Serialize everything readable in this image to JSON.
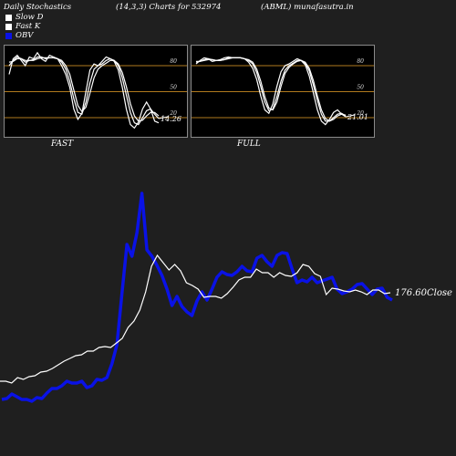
{
  "header": {
    "title": "Daily Stochastics",
    "params": "(14,3,3) Charts for 532974",
    "symbol": "(ABML) munafasutra.in"
  },
  "legend": [
    {
      "label": "Slow  D",
      "color": "#ffffff"
    },
    {
      "label": "Fast K",
      "color": "#ffffff"
    },
    {
      "label": "OBV",
      "color": "#0a12e6"
    }
  ],
  "colors": {
    "background": "#1f1f1f",
    "panel": "#000000",
    "level_line": "#b07a1e",
    "obv": "#0a12e6",
    "price": "#ffffff"
  },
  "chart_data": [
    {
      "type": "line",
      "name": "fast-stochastic",
      "title": "FAST",
      "ylim": [
        0,
        100
      ],
      "levels": [
        80,
        50,
        20
      ],
      "level_labels": [
        "80",
        "50",
        "20"
      ],
      "end_label": "14.26",
      "series": [
        {
          "values": [
            70,
            88,
            92,
            86,
            80,
            90,
            88,
            95,
            88,
            85,
            92,
            90,
            88,
            80,
            70,
            55,
            30,
            18,
            25,
            50,
            75,
            82,
            80,
            85,
            90,
            88,
            85,
            75,
            55,
            30,
            12,
            8,
            15,
            30,
            38,
            30,
            16,
            14
          ]
        },
        {
          "values": [
            80,
            86,
            90,
            88,
            84,
            86,
            87,
            90,
            90,
            88,
            89,
            89,
            88,
            84,
            76,
            62,
            42,
            26,
            24,
            38,
            60,
            76,
            80,
            82,
            86,
            88,
            86,
            80,
            66,
            46,
            26,
            14,
            12,
            20,
            28,
            30,
            24,
            19
          ]
        },
        {
          "values": [
            84,
            85,
            88,
            88,
            86,
            86,
            86,
            88,
            89,
            89,
            89,
            89,
            88,
            86,
            80,
            70,
            52,
            34,
            27,
            32,
            48,
            66,
            76,
            80,
            83,
            86,
            86,
            82,
            72,
            56,
            36,
            22,
            16,
            17,
            22,
            26,
            26,
            22
          ]
        }
      ]
    },
    {
      "type": "line",
      "name": "full-stochastic",
      "title": "FULL",
      "ylim": [
        0,
        100
      ],
      "levels": [
        80,
        50,
        20
      ],
      "level_labels": [
        "80",
        "50",
        "20"
      ],
      "end_label": "21.01",
      "series": [
        {
          "values": [
            84,
            85,
            87,
            88,
            87,
            86,
            86,
            87,
            89,
            89,
            89,
            89,
            88,
            86,
            82,
            72,
            56,
            38,
            28,
            30,
            44,
            62,
            75,
            80,
            83,
            86,
            86,
            83,
            74,
            58,
            40,
            24,
            16,
            16,
            20,
            24,
            25,
            22
          ]
        },
        {
          "values": [
            82,
            86,
            89,
            88,
            85,
            86,
            87,
            89,
            90,
            89,
            89,
            89,
            88,
            84,
            77,
            64,
            45,
            29,
            25,
            36,
            56,
            73,
            80,
            82,
            85,
            88,
            86,
            81,
            68,
            49,
            29,
            16,
            12,
            18,
            26,
            29,
            24,
            21
          ]
        },
        {
          "values": [
            85,
            85,
            86,
            87,
            87,
            86,
            86,
            87,
            88,
            89,
            89,
            89,
            88,
            87,
            84,
            76,
            62,
            44,
            31,
            29,
            38,
            56,
            71,
            78,
            82,
            85,
            86,
            84,
            77,
            63,
            45,
            29,
            19,
            16,
            18,
            22,
            24,
            23
          ]
        }
      ]
    },
    {
      "type": "line",
      "name": "obv-and-close",
      "series": [
        {
          "name": "OBV",
          "values": [
            62,
            63,
            68,
            65,
            62,
            62,
            60,
            64,
            63,
            69,
            74,
            74,
            77,
            82,
            80,
            80,
            82,
            75,
            77,
            84,
            83,
            86,
            101,
            122,
            178,
            232,
            219,
            245,
            288,
            226,
            219,
            209,
            198,
            183,
            165,
            175,
            164,
            158,
            154,
            170,
            180,
            171,
            183,
            196,
            202,
            199,
            198,
            202,
            208,
            203,
            202,
            217,
            220,
            213,
            208,
            220,
            223,
            222,
            205,
            190,
            193,
            191,
            196,
            190,
            192,
            194,
            196,
            183,
            178,
            180,
            183,
            188,
            189,
            183,
            177,
            183,
            184,
            174,
            171
          ]
        },
        {
          "name": "Close",
          "end_label": "176.60Close",
          "values": [
            82,
            82,
            80,
            86,
            84,
            87,
            88,
            92,
            93,
            96,
            100,
            104,
            107,
            110,
            111,
            115,
            115,
            119,
            120,
            119,
            124,
            129,
            141,
            148,
            160,
            180,
            208,
            220,
            212,
            204,
            210,
            203,
            190,
            187,
            183,
            174,
            175,
            175,
            173,
            178,
            185,
            193,
            196,
            196,
            205,
            201,
            201,
            196,
            201,
            198,
            197,
            201,
            210,
            208,
            200,
            197,
            177,
            184,
            183,
            181,
            180,
            182,
            180,
            177,
            182,
            182,
            178,
            179
          ]
        }
      ]
    }
  ]
}
